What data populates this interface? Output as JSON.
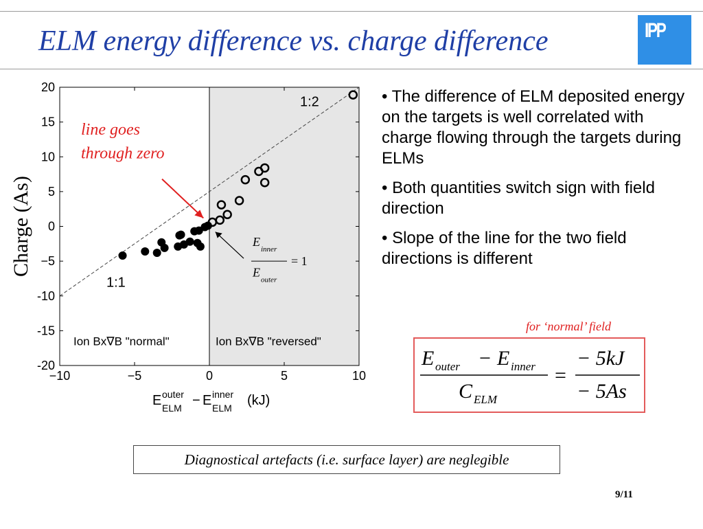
{
  "slide": {
    "title": "ELM energy difference vs. charge difference",
    "logo_text": "IPP",
    "bullets": [
      "• The difference of ELM deposited energy on the targets is well correlated with charge flowing through the targets during ELMs",
      "• Both quantities switch sign with field direction",
      "• Slope of the line for the two field directions is different"
    ],
    "formula_note": "for ‘normal’ field",
    "formula": {
      "e_outer": "E",
      "outer_sub": "outer",
      "minus": "−",
      "e_inner": "E",
      "inner_sub": "inner",
      "c": "C",
      "c_sub": "ELM",
      "equals": "=",
      "numerator": "− 5kJ",
      "denominator": "− 5As"
    },
    "conclusion": "Diagnostical artefacts (i.e. surface layer) are neglegible",
    "page_number": "9/11",
    "accent_title_color": "#1f3fa6",
    "accent_red": "#e02020"
  },
  "chart_data": {
    "type": "scatter",
    "xlabel": {
      "base1": "E",
      "sup1": "outer",
      "sub1": "ELM",
      "op": "−",
      "base2": "E",
      "sup2": "inner",
      "sub2": "ELM",
      "unit": "(kJ)"
    },
    "ylabel": "Charge (As)",
    "xlim": [
      -10,
      10
    ],
    "ylim": [
      -20,
      20
    ],
    "xticks": [
      -10,
      -5,
      0,
      5,
      10
    ],
    "xtick_labels": [
      "−10",
      "−5",
      "0",
      "5",
      "10"
    ],
    "yticks": [
      20,
      15,
      10,
      5,
      0,
      -5,
      -10,
      -15,
      -20
    ],
    "ytick_labels": [
      "20",
      "15",
      "10",
      "5",
      "0",
      "−5",
      "-10",
      "-15",
      "-20"
    ],
    "shaded_region": {
      "x_from": 0,
      "x_to": 10,
      "color": "#e6e6e6"
    },
    "regions": [
      {
        "name": "normal",
        "label": "Ion Bx∇B \"normal\""
      },
      {
        "name": "reversed",
        "label": "Ion Bx∇B \"reversed\""
      }
    ],
    "fit_line": {
      "x": [
        -10,
        10
      ],
      "y": [
        -10,
        20
      ],
      "style": "dashed"
    },
    "annotations": {
      "line_note_1": "line goes",
      "line_note_2": "through zero",
      "ratio_normal": "1:1",
      "ratio_reversed": "1:2",
      "ratio_formula": {
        "num_base": "E",
        "num_sub": "inner",
        "den_base": "E",
        "den_sub": "outer",
        "rhs": "= 1"
      }
    },
    "series": [
      {
        "marker": "filled-circle",
        "points": [
          [
            -5.8,
            -4.2
          ],
          [
            -4.3,
            -3.6
          ],
          [
            -3.5,
            -3.8
          ],
          [
            -3.2,
            -2.3
          ],
          [
            -3.0,
            -3.1
          ],
          [
            -2.0,
            -1.3
          ],
          [
            -2.1,
            -2.9
          ],
          [
            -1.9,
            -1.2
          ],
          [
            -1.7,
            -2.6
          ],
          [
            -1.3,
            -2.2
          ],
          [
            -1.0,
            -0.7
          ],
          [
            -0.8,
            -2.4
          ],
          [
            -0.7,
            -0.6
          ],
          [
            -0.6,
            -2.9
          ],
          [
            -0.3,
            -0.1
          ],
          [
            -0.1,
            0.1
          ]
        ]
      },
      {
        "marker": "open-circle",
        "points": [
          [
            0.2,
            0.6
          ],
          [
            0.7,
            0.9
          ],
          [
            0.8,
            3.1
          ],
          [
            1.2,
            1.7
          ],
          [
            2.0,
            3.7
          ],
          [
            2.4,
            6.7
          ],
          [
            3.3,
            7.9
          ],
          [
            3.7,
            8.4
          ],
          [
            3.7,
            6.3
          ],
          [
            9.6,
            18.9
          ]
        ]
      }
    ]
  }
}
